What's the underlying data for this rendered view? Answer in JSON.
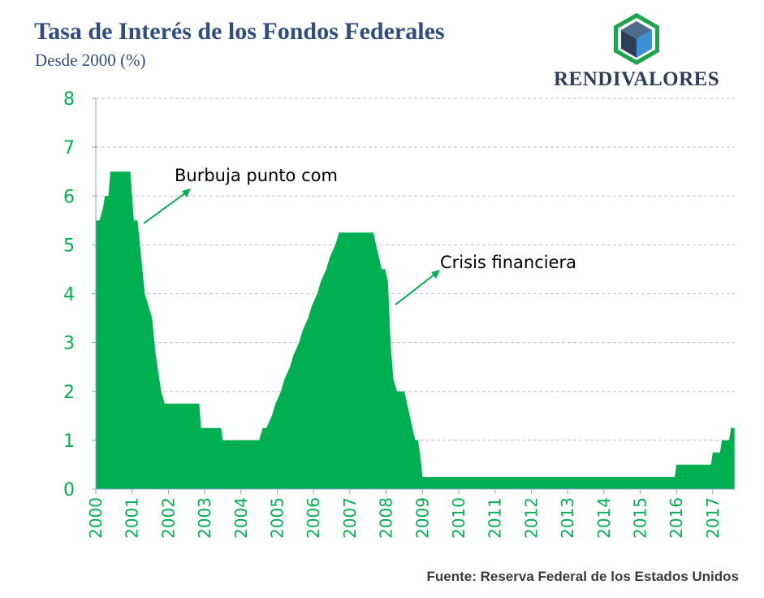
{
  "header": {
    "title": "Tasa de Interés de los Fondos Federales",
    "subtitle": "Desde 2000 (%)"
  },
  "logo": {
    "text": "RENDIVALORES",
    "icon": "cube-hexagon-icon",
    "colors": {
      "ring": "#1aa64a",
      "cube_dark": "#2e3e58",
      "cube_blue": "#3a8fd6"
    }
  },
  "source": "Fuente: Reserva Federal de los Estados Unidos",
  "colors": {
    "area": "#00b050",
    "axis_text": "#00b050",
    "grid": "#bfbfbf",
    "title": "#2e4d80"
  },
  "chart_data": {
    "type": "area",
    "ylim": [
      0,
      8
    ],
    "yticks": [
      "0",
      "1",
      "2",
      "3",
      "4",
      "5",
      "6",
      "7",
      "8"
    ],
    "xlim": [
      2000,
      2017.6
    ],
    "xticks": [
      "2000",
      "2001",
      "2002",
      "2003",
      "2004",
      "2005",
      "2006",
      "2007",
      "2008",
      "2009",
      "2010",
      "2011",
      "2012",
      "2013",
      "2014",
      "2015",
      "2016",
      "2017"
    ],
    "grid": true,
    "x": [
      2000.0,
      2000.1,
      2000.2,
      2000.25,
      2000.35,
      2000.4,
      2000.95,
      2001.05,
      2001.15,
      2001.25,
      2001.35,
      2001.45,
      2001.55,
      2001.65,
      2001.8,
      2001.9,
      2001.96,
      2002.85,
      2002.9,
      2003.45,
      2003.5,
      2004.5,
      2004.6,
      2004.7,
      2004.85,
      2004.95,
      2005.1,
      2005.2,
      2005.35,
      2005.45,
      2005.6,
      2005.7,
      2005.85,
      2005.95,
      2006.1,
      2006.2,
      2006.35,
      2006.45,
      2006.6,
      2006.7,
      2007.65,
      2007.72,
      2007.8,
      2007.88,
      2007.97,
      2008.05,
      2008.12,
      2008.2,
      2008.3,
      2008.5,
      2008.8,
      2008.88,
      2008.97,
      2009.0,
      2015.95,
      2016.0,
      2016.95,
      2017.0,
      2017.2,
      2017.25,
      2017.45,
      2017.5,
      2017.6
    ],
    "y": [
      5.5,
      5.5,
      5.75,
      6.0,
      6.0,
      6.5,
      6.5,
      5.5,
      5.5,
      4.75,
      4.0,
      3.75,
      3.5,
      2.75,
      2.0,
      1.75,
      1.75,
      1.75,
      1.25,
      1.25,
      1.0,
      1.0,
      1.25,
      1.25,
      1.5,
      1.75,
      2.0,
      2.25,
      2.5,
      2.75,
      3.0,
      3.25,
      3.5,
      3.75,
      4.0,
      4.25,
      4.5,
      4.75,
      5.0,
      5.25,
      5.25,
      5.0,
      4.75,
      4.5,
      4.5,
      4.25,
      3.0,
      2.25,
      2.0,
      2.0,
      1.0,
      1.0,
      0.5,
      0.25,
      0.25,
      0.5,
      0.5,
      0.75,
      0.75,
      1.0,
      1.0,
      1.25,
      1.25
    ],
    "annotations": [
      {
        "text": "Burbuja punto com"
      },
      {
        "text": "Crisis financiera"
      }
    ]
  }
}
